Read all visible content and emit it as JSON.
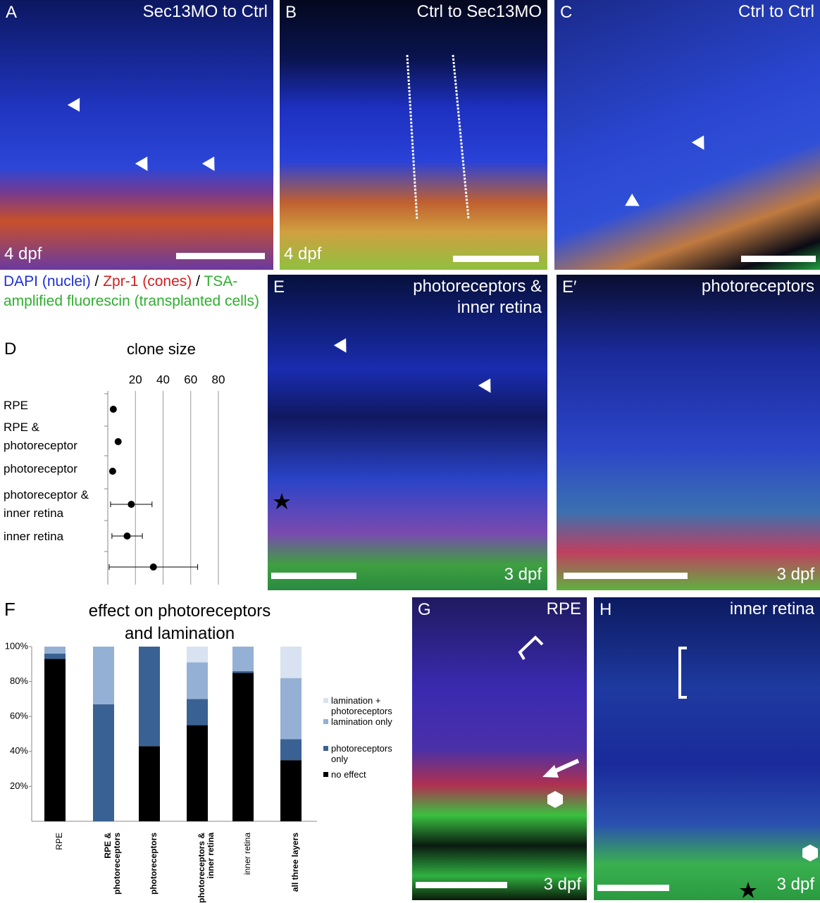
{
  "panels": [
    {
      "label": "A",
      "caption": "Sec13MO to Ctrl",
      "stage": "4 dpf"
    },
    {
      "label": "B",
      "caption": "Ctrl to Sec13MO",
      "stage": "4 dpf"
    },
    {
      "label": "C",
      "caption": "Ctrl to Ctrl"
    },
    {
      "label": "E",
      "caption": "photoreceptors & inner retina",
      "stage": "3 dpf"
    },
    {
      "label": "E′",
      "caption": "photoreceptors",
      "stage": "3 dpf"
    },
    {
      "label": "G",
      "caption": "RPE",
      "stage": "3 dpf"
    },
    {
      "label": "H",
      "caption": "inner retina",
      "stage": "3 dpf"
    }
  ],
  "stain_legend": [
    {
      "text": "DAPI (nuclei)",
      "color": "#1f2fd6"
    },
    {
      "text": " / ",
      "color": "#000000"
    },
    {
      "text": "Zpr-1 (cones)",
      "color": "#d21f1f"
    },
    {
      "text": " / ",
      "color": "#000000"
    },
    {
      "text": "TSA-amplified fluorescin (transplanted cells)",
      "color": "#2fae2f"
    }
  ],
  "chart_data": [
    {
      "type": "dot",
      "panel": "D",
      "title": "clone size",
      "categories": [
        "RPE",
        "RPE & photoreceptor",
        "photoreceptor",
        "photoreceptor & inner retina",
        "inner retina",
        null
      ],
      "values": [
        4,
        7.5,
        3.5,
        17,
        14,
        33
      ],
      "errors": [
        0,
        0,
        0,
        15,
        11,
        32
      ],
      "xlim": [
        0,
        80
      ],
      "xticks": [
        20,
        40,
        60,
        80
      ],
      "grid": true,
      "color": "#000000"
    },
    {
      "type": "stacked-bar",
      "panel": "F",
      "title": "effect on photoreceptors and lamination",
      "categories": [
        "RPE",
        "RPE & photoreceptors",
        "photoreceptors",
        "photoreceptors & inner retina",
        "inner retina",
        "all three layers"
      ],
      "series": [
        {
          "name": "no effect",
          "color": "#000000",
          "values": [
            93,
            0,
            43,
            55,
            85,
            35
          ]
        },
        {
          "name": "photoreceptors only",
          "color": "#3a6193",
          "values": [
            3,
            67,
            57,
            15,
            1,
            12
          ]
        },
        {
          "name": "lamination only",
          "color": "#94b0d4",
          "values": [
            4,
            33,
            0,
            21,
            14,
            35
          ]
        },
        {
          "name": "lamination + photoreceptors",
          "color": "#d8e2f0",
          "values": [
            0,
            0,
            0,
            9,
            0,
            18
          ]
        }
      ],
      "ylim": [
        0,
        100
      ],
      "yticks": [
        {
          "value": 20,
          "label": "20%"
        },
        {
          "value": 40,
          "label": "40%"
        },
        {
          "value": 60,
          "label": "60%"
        },
        {
          "value": 80,
          "label": "80%"
        },
        {
          "value": 100,
          "label": "100%"
        }
      ],
      "legend": "right"
    }
  ]
}
